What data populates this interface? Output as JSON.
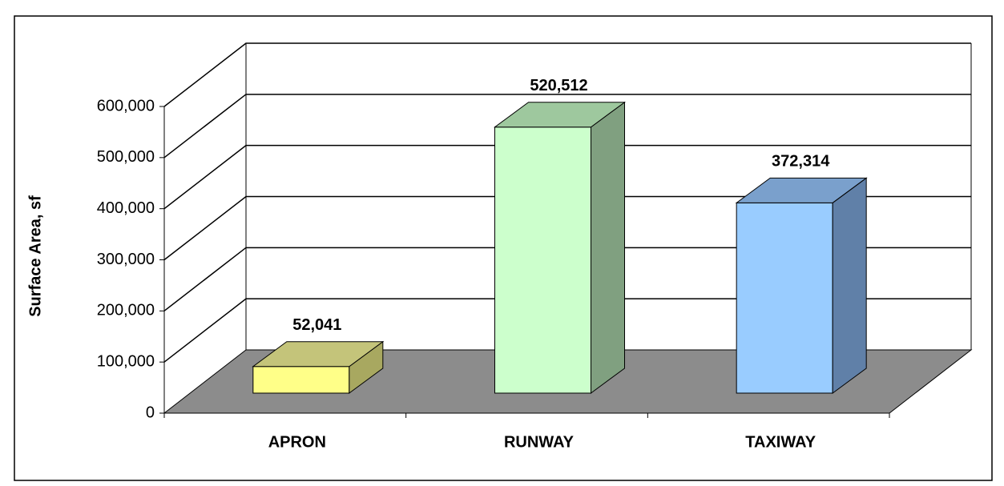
{
  "chart_data": {
    "type": "bar3d",
    "ylabel": "Surface Area, sf",
    "categories": [
      "APRON",
      "RUNWAY",
      "TAXIWAY"
    ],
    "values": [
      52041,
      520512,
      372314
    ],
    "value_labels": [
      "52,041",
      "520,512",
      "372,314"
    ],
    "colors": [
      "#ffff88",
      "#ccffcc",
      "#99ccff"
    ],
    "top_colors": [
      "#c4c47a",
      "#9ec89e",
      "#7aa0cc"
    ],
    "side_colors": [
      "#a8a860",
      "#80a080",
      "#6080a8"
    ],
    "floor_color": "#8c8c8c",
    "ylim": [
      0,
      600000
    ],
    "yticks": [
      0,
      {
        "value": 100000,
        "label": "100,000"
      },
      {
        "value": 200000,
        "label": "200,000"
      },
      {
        "value": 300000,
        "label": "300,000"
      },
      {
        "value": 400000,
        "label": "400,000"
      },
      {
        "value": 500000,
        "label": "500,000"
      },
      {
        "value": 600000,
        "label": "600,000"
      }
    ],
    "grid": true
  }
}
